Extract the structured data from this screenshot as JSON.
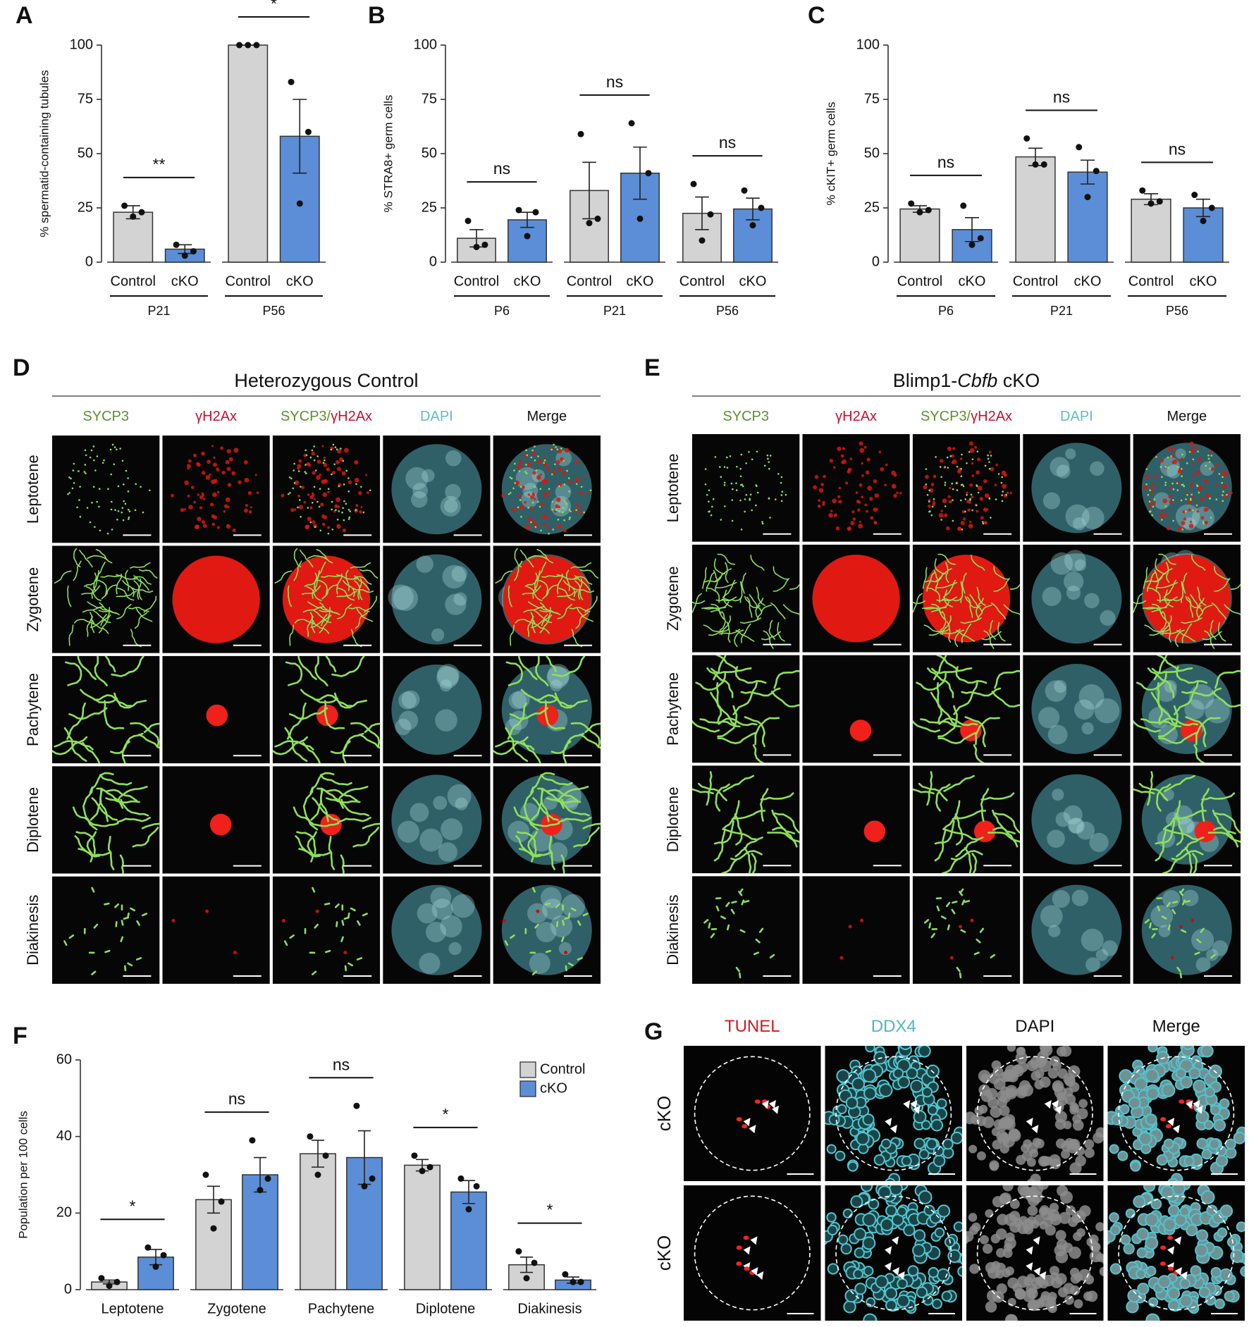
{
  "chart_data": [
    {
      "panel": "A",
      "type": "bar",
      "y_label": "% spermatid-containing tubules",
      "categories": [
        "P21",
        "P56"
      ],
      "series": [
        {
          "name": "Control",
          "color": "#d3d3d3",
          "values": [
            23,
            100
          ],
          "errors": [
            3,
            0
          ],
          "points": [
            [
              26,
              23,
              21
            ],
            [
              100,
              100,
              100
            ]
          ]
        },
        {
          "name": "cKO",
          "color": "#5b8ed6",
          "values": [
            6,
            58
          ],
          "errors": [
            2,
            17
          ],
          "points": [
            [
              8,
              5,
              3
            ],
            [
              83,
              60,
              27
            ]
          ]
        }
      ],
      "significance": [
        "**",
        "*"
      ],
      "ylim": [
        0,
        100
      ],
      "yticks": [
        0,
        25,
        50,
        75,
        100
      ]
    },
    {
      "panel": "B",
      "type": "bar",
      "y_label": "% STRA8+ germ cells",
      "categories": [
        "P6",
        "P21",
        "P56"
      ],
      "series": [
        {
          "name": "Control",
          "color": "#d3d3d3",
          "values": [
            11,
            33,
            22.5
          ],
          "errors": [
            4,
            13,
            7.5
          ],
          "points": [
            [
              19,
              8,
              7
            ],
            [
              59,
              20,
              18
            ],
            [
              36,
              22,
              10
            ]
          ]
        },
        {
          "name": "cKO",
          "color": "#5b8ed6",
          "values": [
            19.5,
            41,
            24.5
          ],
          "errors": [
            3.5,
            12,
            5
          ],
          "points": [
            [
              24,
              23,
              12
            ],
            [
              64,
              41,
              20
            ],
            [
              33,
              25,
              17
            ]
          ]
        }
      ],
      "significance": [
        "ns",
        "ns",
        "ns"
      ],
      "ylim": [
        0,
        100
      ],
      "yticks": [
        0,
        25,
        50,
        75,
        100
      ]
    },
    {
      "panel": "C",
      "type": "bar",
      "y_label": "% cKIT+ germ cells",
      "categories": [
        "P6",
        "P21",
        "P56"
      ],
      "series": [
        {
          "name": "Control",
          "color": "#d3d3d3",
          "values": [
            24.5,
            48.5,
            29
          ],
          "errors": [
            1.5,
            4,
            2.5
          ],
          "points": [
            [
              27,
              24,
              23
            ],
            [
              57,
              45,
              45
            ],
            [
              33,
              28,
              27
            ]
          ]
        },
        {
          "name": "cKO",
          "color": "#5b8ed6",
          "values": [
            15,
            41.5,
            25
          ],
          "errors": [
            5.5,
            5.5,
            4
          ],
          "points": [
            [
              26,
              11,
              8
            ],
            [
              53,
              42,
              30
            ],
            [
              31,
              25,
              19
            ]
          ]
        }
      ],
      "significance": [
        "ns",
        "ns",
        "ns"
      ],
      "ylim": [
        0,
        100
      ],
      "yticks": [
        0,
        25,
        50,
        75,
        100
      ]
    },
    {
      "panel": "F",
      "type": "bar",
      "y_label": "Population per 100 cells",
      "categories": [
        "Leptotene",
        "Zygotene",
        "Pachytene",
        "Diplotene",
        "Diakinesis"
      ],
      "series": [
        {
          "name": "Control",
          "color": "#d3d3d3",
          "values": [
            2,
            23.5,
            35.5,
            32.5,
            6.5
          ],
          "errors": [
            0.5,
            3.5,
            3.5,
            1.5,
            2
          ],
          "points": [
            [
              3,
              2,
              1
            ],
            [
              30,
              23,
              16
            ],
            [
              40,
              35,
              30
            ],
            [
              35,
              32,
              31
            ],
            [
              10,
              7,
              3
            ]
          ]
        },
        {
          "name": "cKO",
          "color": "#5b8ed6",
          "values": [
            8.5,
            30,
            34.5,
            25.5,
            2.5
          ],
          "errors": [
            2,
            4.5,
            7,
            3,
            0.8
          ],
          "points": [
            [
              11,
              9,
              6
            ],
            [
              39,
              29,
              26
            ],
            [
              48,
              29,
              27
            ],
            [
              29,
              27,
              21
            ],
            [
              4,
              2,
              2
            ]
          ]
        }
      ],
      "significance": [
        "*",
        "ns",
        "ns",
        "*",
        "*"
      ],
      "ylim": [
        0,
        60
      ],
      "yticks": [
        0,
        20,
        40,
        60
      ],
      "legend": "top-right"
    }
  ],
  "micrographs": [
    {
      "panel": "D",
      "title_parts": [
        "Heterozygous Control"
      ],
      "title_styles": [
        "normal"
      ],
      "columns": [
        {
          "parts": [
            "SYCP3"
          ],
          "colors": [
            "#5e8f2c"
          ]
        },
        {
          "parts": [
            "γH2Ax"
          ],
          "colors": [
            "#c8102e"
          ]
        },
        {
          "parts": [
            "SYCP3/",
            "γH2Ax"
          ],
          "colors": [
            "#5e8f2c",
            "#c8102e"
          ]
        },
        {
          "parts": [
            "DAPI"
          ],
          "colors": [
            "#5fbcc4"
          ]
        },
        {
          "parts": [
            "Merge"
          ],
          "colors": [
            "#111111"
          ]
        }
      ],
      "rows": [
        "Leptotene",
        "Zygotene",
        "Pachytene",
        "Diplotene",
        "Diakinesis"
      ]
    },
    {
      "panel": "E",
      "title_parts": [
        "Blimp1-",
        "Cbfb",
        " cKO"
      ],
      "title_styles": [
        "normal",
        "italic",
        "normal"
      ],
      "columns": [
        {
          "parts": [
            "SYCP3"
          ],
          "colors": [
            "#5e8f2c"
          ]
        },
        {
          "parts": [
            "γH2Ax"
          ],
          "colors": [
            "#c8102e"
          ]
        },
        {
          "parts": [
            "SYCP3/",
            "γH2Ax"
          ],
          "colors": [
            "#5e8f2c",
            "#c8102e"
          ]
        },
        {
          "parts": [
            "DAPI"
          ],
          "colors": [
            "#5fbcc4"
          ]
        },
        {
          "parts": [
            "Merge"
          ],
          "colors": [
            "#111111"
          ]
        }
      ],
      "rows": [
        "Leptotene",
        "Zygotene",
        "Pachytene",
        "Diplotene",
        "Diakinesis"
      ]
    },
    {
      "panel": "G",
      "columns": [
        {
          "parts": [
            "TUNEL"
          ],
          "colors": [
            "#d7191c"
          ]
        },
        {
          "parts": [
            "DDX4"
          ],
          "colors": [
            "#4fb8c0"
          ]
        },
        {
          "parts": [
            "DAPI"
          ],
          "colors": [
            "#111111"
          ]
        },
        {
          "parts": [
            "Merge"
          ],
          "colors": [
            "#111111"
          ]
        }
      ],
      "rows": [
        "cKO",
        "cKO"
      ]
    }
  ]
}
